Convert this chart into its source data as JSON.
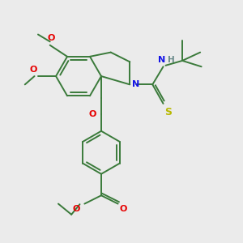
{
  "bg_color": "#ebebeb",
  "bond_color": "#3a7a3a",
  "N_color": "#1414e6",
  "O_color": "#e60000",
  "S_color": "#b8b800",
  "H_color": "#6a8a8a",
  "line_width": 1.4,
  "figsize": [
    3.0,
    3.0
  ],
  "dpi": 100,
  "xlim": [
    0,
    10
  ],
  "ylim": [
    0,
    10
  ],
  "font_size": 7.5
}
